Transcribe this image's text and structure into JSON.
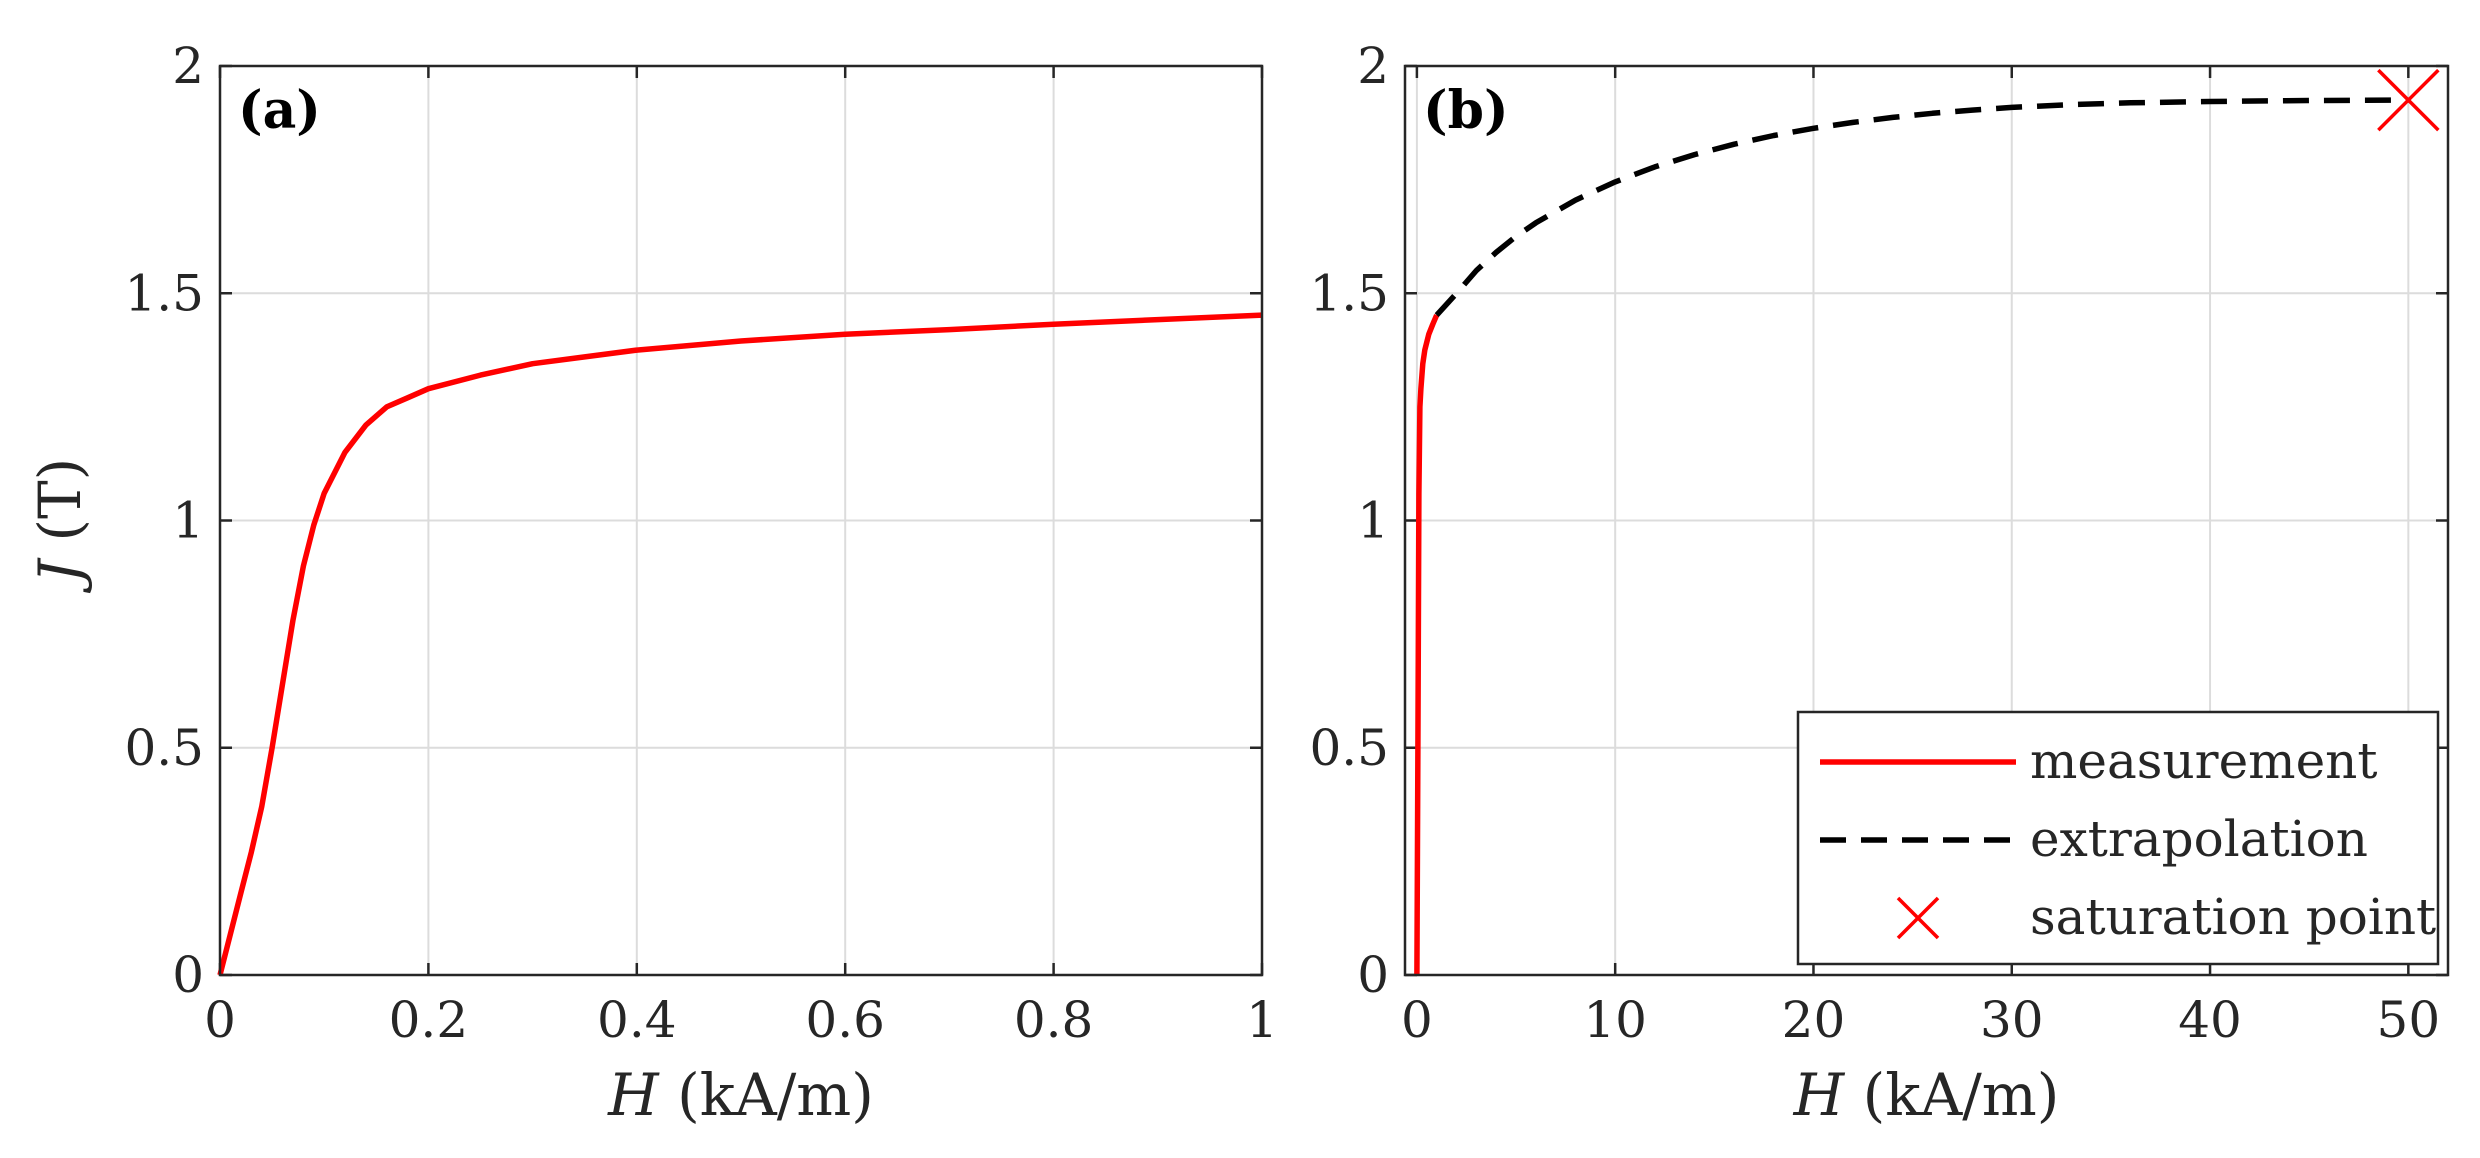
{
  "chart_data": [
    {
      "type": "line",
      "panel_label": "(a)",
      "xlabel_symbol": "H",
      "xlabel_unit": "(kA/m)",
      "ylabel_symbol": "J",
      "ylabel_unit": "(T)",
      "xlim": [
        0,
        1
      ],
      "ylim": [
        0,
        2
      ],
      "xticks": [
        0,
        0.2,
        0.4,
        0.6,
        0.8,
        1
      ],
      "xtick_labels": [
        "0",
        "0.2",
        "0.4",
        "0.6",
        "0.8",
        "1"
      ],
      "yticks": [
        0,
        0.5,
        1,
        1.5,
        2
      ],
      "ytick_labels": [
        "0",
        "0.5",
        "1",
        "1.5",
        "2"
      ],
      "grid": true,
      "series": [
        {
          "name": "measurement",
          "color": "#ff0000",
          "style": "solid",
          "x": [
            0,
            0.01,
            0.02,
            0.03,
            0.04,
            0.05,
            0.06,
            0.07,
            0.08,
            0.09,
            0.1,
            0.12,
            0.14,
            0.16,
            0.18,
            0.2,
            0.25,
            0.3,
            0.35,
            0.4,
            0.5,
            0.6,
            0.7,
            0.8,
            0.9,
            1.0
          ],
          "y": [
            0,
            0.09,
            0.18,
            0.27,
            0.37,
            0.5,
            0.64,
            0.78,
            0.9,
            0.99,
            1.06,
            1.15,
            1.21,
            1.25,
            1.27,
            1.29,
            1.32,
            1.345,
            1.36,
            1.375,
            1.395,
            1.41,
            1.42,
            1.432,
            1.442,
            1.452
          ]
        }
      ]
    },
    {
      "type": "line",
      "panel_label": "(b)",
      "xlabel_symbol": "H",
      "xlabel_unit": "(kA/m)",
      "xlim": [
        -0.6,
        52
      ],
      "ylim": [
        0,
        2
      ],
      "xticks": [
        0,
        10,
        20,
        30,
        40,
        50
      ],
      "xtick_labels": [
        "0",
        "10",
        "20",
        "30",
        "40",
        "50"
      ],
      "yticks": [
        0,
        0.5,
        1,
        1.5,
        2
      ],
      "ytick_labels": [
        "0",
        "0.5",
        "1",
        "1.5",
        "2"
      ],
      "grid": true,
      "legend_position": "bottom-right",
      "series": [
        {
          "name": "measurement",
          "color": "#ff0000",
          "style": "solid",
          "x": [
            0,
            0.05,
            0.1,
            0.15,
            0.2,
            0.3,
            0.4,
            0.6,
            0.8,
            1.0
          ],
          "y": [
            0,
            0.5,
            1.06,
            1.25,
            1.29,
            1.345,
            1.375,
            1.41,
            1.432,
            1.452
          ]
        },
        {
          "name": "extrapolation",
          "color": "#000000",
          "style": "dashed",
          "x": [
            1.0,
            2,
            3,
            4,
            5,
            6,
            8,
            10,
            12,
            14,
            16,
            18,
            20,
            22,
            24,
            26,
            28,
            30,
            33,
            36,
            40,
            45,
            50
          ],
          "y": [
            1.452,
            1.5,
            1.55,
            1.59,
            1.625,
            1.655,
            1.705,
            1.745,
            1.778,
            1.805,
            1.828,
            1.847,
            1.863,
            1.876,
            1.887,
            1.896,
            1.903,
            1.909,
            1.915,
            1.919,
            1.922,
            1.924,
            1.925
          ]
        },
        {
          "name": "saturation point",
          "color": "#ff0000",
          "style": "marker-x",
          "x": [
            50
          ],
          "y": [
            1.925
          ]
        }
      ],
      "legend": [
        "measurement",
        "extrapolation",
        "saturation point"
      ]
    }
  ]
}
